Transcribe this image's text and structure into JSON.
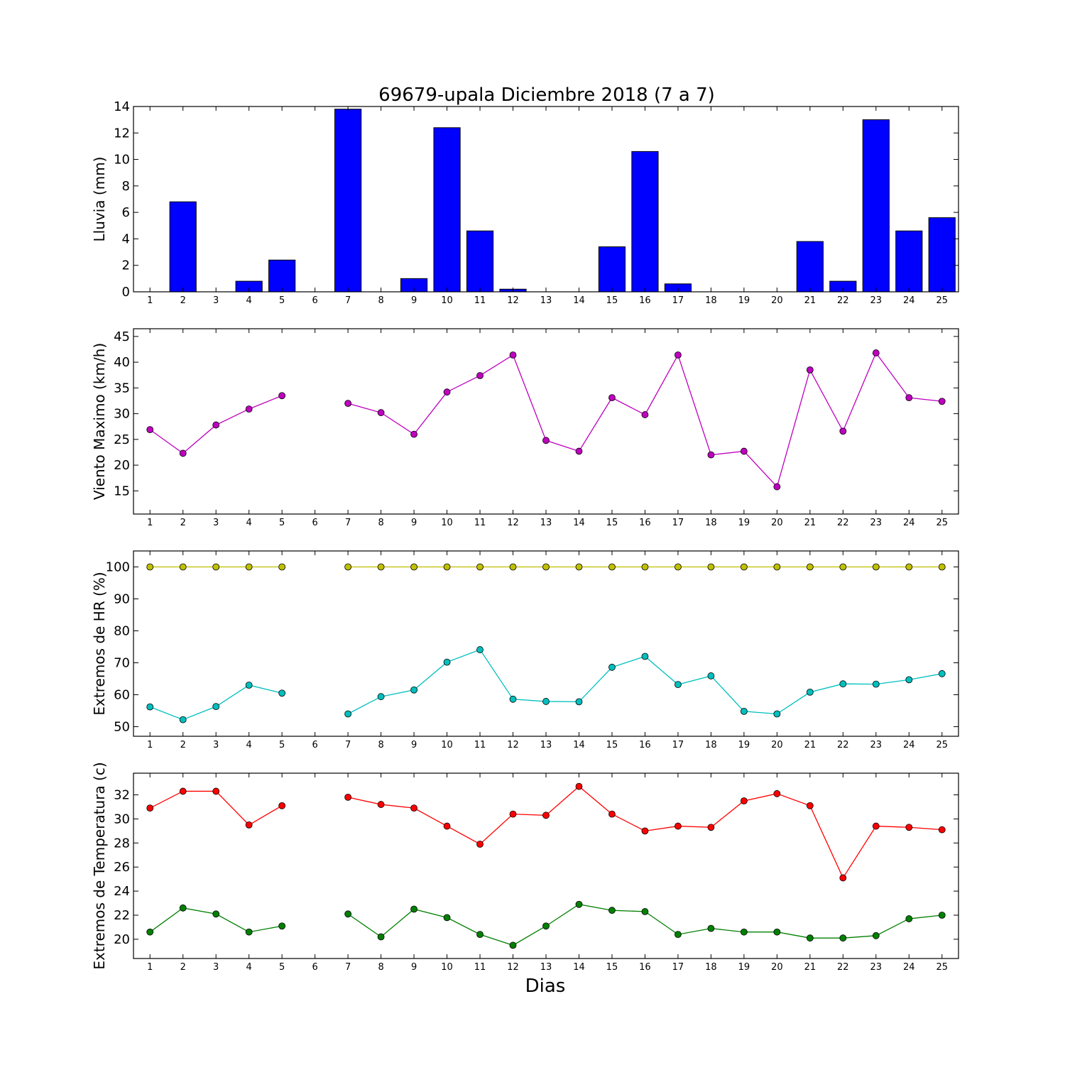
{
  "title": "69679-upala Diciembre 2018  (7 a 7)",
  "xlabel": "Dias",
  "colors": {
    "rain": "#0000ff",
    "wind": "#bf00bf",
    "hr_max": "#bfbf00",
    "hr_min": "#00bfbf",
    "t_max": "#ff0000",
    "t_min": "#008000"
  },
  "chart_data": [
    {
      "type": "bar",
      "ylabel": "Lluvia (mm)",
      "x": [
        1,
        2,
        3,
        4,
        5,
        6,
        7,
        8,
        9,
        10,
        11,
        12,
        13,
        14,
        15,
        16,
        17,
        18,
        19,
        20,
        21,
        22,
        23,
        24,
        25
      ],
      "xlim": [
        0.5,
        25.5
      ],
      "ylim": [
        0,
        14
      ],
      "yticks": [
        0,
        2,
        4,
        6,
        8,
        10,
        12,
        14
      ],
      "grid": false,
      "series": [
        {
          "values": [
            0,
            6.8,
            0,
            0.8,
            2.4,
            0,
            13.8,
            0,
            1.0,
            12.4,
            4.6,
            0.2,
            0,
            0,
            3.4,
            10.6,
            0.6,
            0,
            0,
            0,
            3.8,
            0.8,
            13.0,
            4.6,
            5.6
          ],
          "color": "#0000ff"
        }
      ]
    },
    {
      "type": "line",
      "ylabel": "Viento Maximo (km/h)",
      "x": [
        1,
        2,
        3,
        4,
        5,
        6,
        7,
        8,
        9,
        10,
        11,
        12,
        13,
        14,
        15,
        16,
        17,
        18,
        19,
        20,
        21,
        22,
        23,
        24,
        25
      ],
      "xlim": [
        0.5,
        25.5
      ],
      "ylim": [
        10.5,
        46.5
      ],
      "yticks": [
        15,
        20,
        25,
        30,
        35,
        40,
        45
      ],
      "grid": false,
      "series": [
        {
          "values": [
            26.9,
            22.3,
            27.8,
            30.9,
            33.5,
            null,
            32.0,
            30.2,
            26.0,
            34.2,
            37.4,
            41.4,
            24.8,
            22.7,
            33.1,
            29.8,
            41.4,
            22.0,
            22.7,
            15.8,
            38.5,
            26.6,
            41.8,
            33.1,
            32.4
          ],
          "color": "#bf00bf"
        }
      ]
    },
    {
      "type": "line",
      "ylabel": "Extremos de HR (%)",
      "x": [
        1,
        2,
        3,
        4,
        5,
        6,
        7,
        8,
        9,
        10,
        11,
        12,
        13,
        14,
        15,
        16,
        17,
        18,
        19,
        20,
        21,
        22,
        23,
        24,
        25
      ],
      "xlim": [
        0.5,
        25.5
      ],
      "ylim": [
        47,
        105
      ],
      "yticks": [
        50,
        60,
        70,
        80,
        90,
        100
      ],
      "grid": false,
      "series": [
        {
          "values": [
            100,
            100,
            100,
            100,
            100,
            null,
            100,
            100,
            100,
            100,
            100,
            100,
            100,
            100,
            100,
            100,
            100,
            100,
            100,
            100,
            100,
            100,
            100,
            100,
            100
          ],
          "color": "#bfbf00"
        },
        {
          "values": [
            56.2,
            52.2,
            56.3,
            63.0,
            60.5,
            null,
            54.0,
            59.4,
            61.5,
            70.2,
            74.1,
            58.6,
            57.9,
            57.8,
            68.6,
            72.0,
            63.2,
            65.9,
            54.8,
            54.0,
            60.8,
            63.4,
            63.3,
            64.7,
            66.6
          ],
          "color": "#00bfbf"
        }
      ]
    },
    {
      "type": "line",
      "ylabel": "Extremos de Temperatura (c)",
      "x": [
        1,
        2,
        3,
        4,
        5,
        6,
        7,
        8,
        9,
        10,
        11,
        12,
        13,
        14,
        15,
        16,
        17,
        18,
        19,
        20,
        21,
        22,
        23,
        24,
        25
      ],
      "xlim": [
        0.5,
        25.5
      ],
      "ylim": [
        18.4,
        33.8
      ],
      "yticks": [
        20,
        22,
        24,
        26,
        28,
        30,
        32
      ],
      "grid": false,
      "series": [
        {
          "values": [
            30.9,
            32.3,
            32.3,
            29.5,
            31.1,
            null,
            31.8,
            31.2,
            30.9,
            29.4,
            27.9,
            30.4,
            30.3,
            32.7,
            30.4,
            29.0,
            29.4,
            29.3,
            31.5,
            32.1,
            31.1,
            25.1,
            29.4,
            29.3,
            29.1
          ],
          "color": "#ff0000"
        },
        {
          "values": [
            20.6,
            22.6,
            22.1,
            20.6,
            21.1,
            null,
            22.1,
            20.2,
            22.5,
            21.8,
            20.4,
            19.5,
            21.1,
            22.9,
            22.4,
            22.3,
            20.4,
            20.9,
            20.6,
            20.6,
            20.1,
            20.1,
            20.3,
            21.7,
            22.0
          ],
          "color": "#008000"
        }
      ]
    }
  ]
}
